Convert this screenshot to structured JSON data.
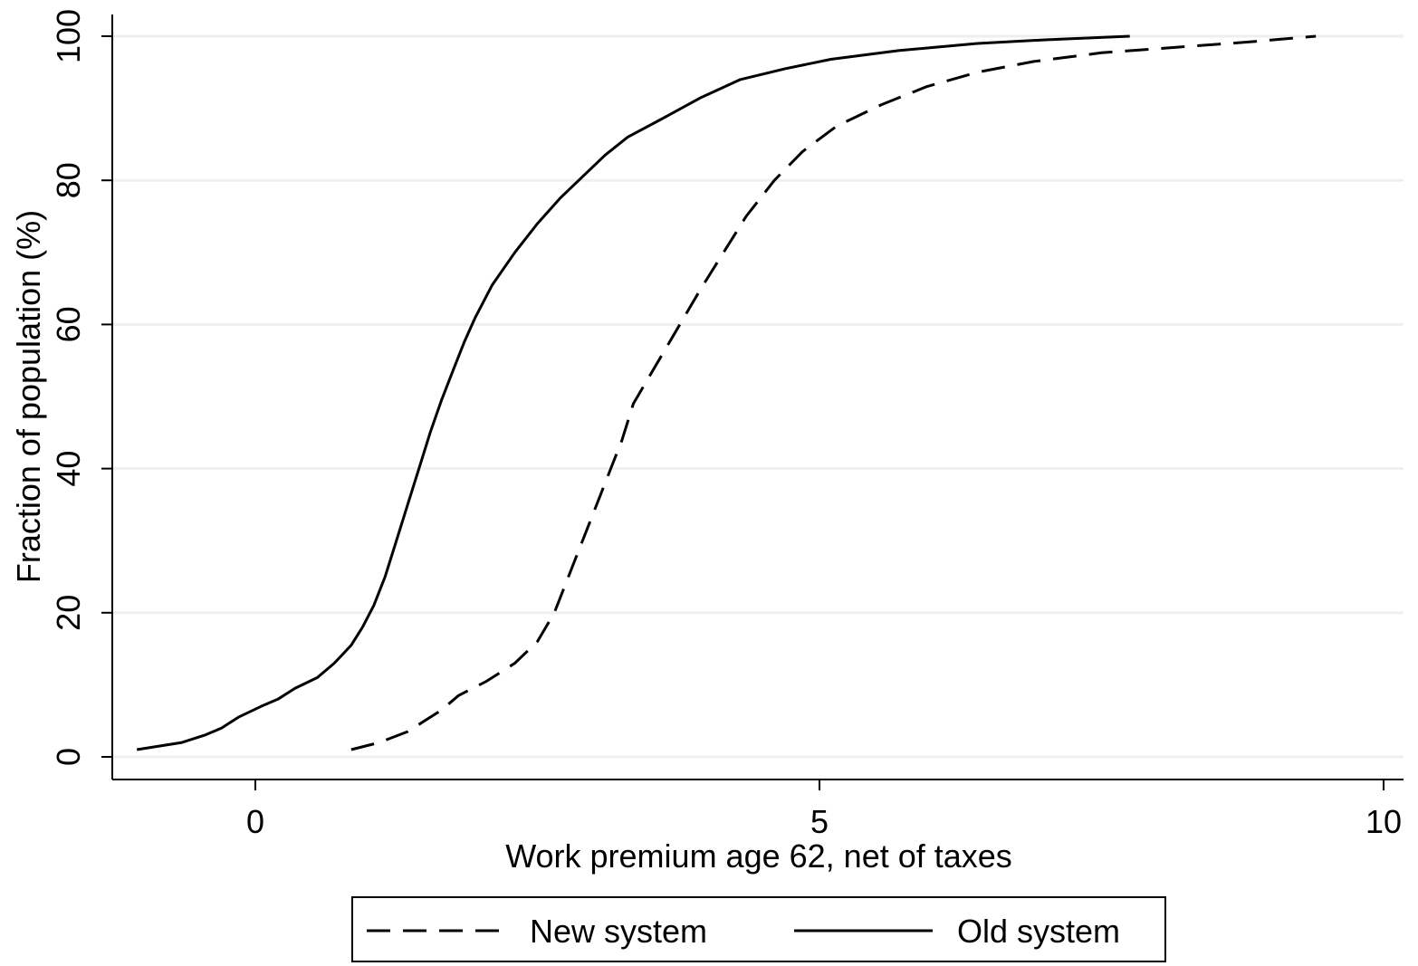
{
  "chart_data": {
    "type": "line",
    "xlabel": "Work premium age 62, net of taxes",
    "ylabel": "Fraction of population (%)",
    "xlim": [
      -1.25,
      10.2
    ],
    "ylim": [
      0,
      100
    ],
    "x_ticks": [
      0,
      5,
      10
    ],
    "y_ticks": [
      0,
      20,
      40,
      60,
      80,
      100
    ],
    "grid": true,
    "legend_position": "bottom",
    "series": [
      {
        "name": "New system",
        "line_style": "dashed",
        "color": "#000000",
        "points": [
          [
            0.85,
            1
          ],
          [
            1.1,
            2
          ],
          [
            1.35,
            3.5
          ],
          [
            1.65,
            6.5
          ],
          [
            1.8,
            8.5
          ],
          [
            2.05,
            10.5
          ],
          [
            2.3,
            13
          ],
          [
            2.5,
            16
          ],
          [
            2.65,
            20
          ],
          [
            2.8,
            26
          ],
          [
            2.95,
            32
          ],
          [
            3.1,
            38
          ],
          [
            3.25,
            44
          ],
          [
            3.35,
            49
          ],
          [
            3.5,
            53
          ],
          [
            3.65,
            57
          ],
          [
            3.8,
            61
          ],
          [
            3.95,
            65
          ],
          [
            4.15,
            70
          ],
          [
            4.35,
            75
          ],
          [
            4.6,
            80
          ],
          [
            4.85,
            84
          ],
          [
            5.15,
            87.5
          ],
          [
            5.55,
            90.5
          ],
          [
            5.95,
            93
          ],
          [
            6.4,
            95
          ],
          [
            6.9,
            96.5
          ],
          [
            7.5,
            97.7
          ],
          [
            8.2,
            98.5
          ],
          [
            8.8,
            99.2
          ],
          [
            9.4,
            100
          ]
        ]
      },
      {
        "name": "Old system",
        "line_style": "solid",
        "color": "#000000",
        "points": [
          [
            -1.05,
            1
          ],
          [
            -0.65,
            2
          ],
          [
            -0.45,
            3
          ],
          [
            -0.3,
            4
          ],
          [
            -0.15,
            5.5
          ],
          [
            0.05,
            7
          ],
          [
            0.2,
            8
          ],
          [
            0.35,
            9.5
          ],
          [
            0.55,
            11
          ],
          [
            0.7,
            13
          ],
          [
            0.85,
            15.5
          ],
          [
            0.95,
            18
          ],
          [
            1.05,
            21
          ],
          [
            1.15,
            25
          ],
          [
            1.25,
            30
          ],
          [
            1.35,
            35
          ],
          [
            1.45,
            40
          ],
          [
            1.55,
            45
          ],
          [
            1.65,
            49.5
          ],
          [
            1.75,
            53.5
          ],
          [
            1.85,
            57.5
          ],
          [
            1.95,
            61
          ],
          [
            2.1,
            65.5
          ],
          [
            2.3,
            70
          ],
          [
            2.5,
            74
          ],
          [
            2.7,
            77.5
          ],
          [
            2.9,
            80.5
          ],
          [
            3.1,
            83.5
          ],
          [
            3.3,
            86
          ],
          [
            3.6,
            88.5
          ],
          [
            3.95,
            91.5
          ],
          [
            4.3,
            94
          ],
          [
            4.7,
            95.5
          ],
          [
            5.1,
            96.8
          ],
          [
            5.7,
            98
          ],
          [
            6.4,
            99
          ],
          [
            7.0,
            99.5
          ],
          [
            7.75,
            100
          ]
        ]
      }
    ]
  }
}
